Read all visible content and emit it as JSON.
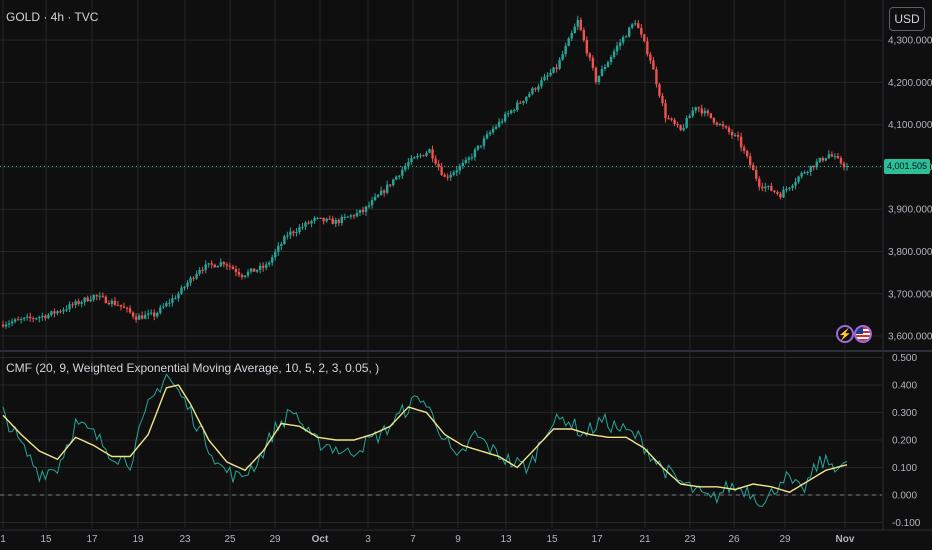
{
  "header": {
    "title": "GOLD · 4h · TVC",
    "currency": "USD"
  },
  "indicator": {
    "title": "CMF (20, 9, Weighted Exponential Moving Average, 10, 5, 2, 3, 0.05, )"
  },
  "last_price_label": "4,001.505",
  "colors": {
    "bull": "#26a69a",
    "bear": "#ef5350",
    "cmf": "#26a69a",
    "signal": "#f0e68c",
    "last_price": "#2bbf9a",
    "grid": "#262626"
  },
  "icons": [
    "lightning-event-icon",
    "us-flag-event-icon"
  ],
  "chart_data": [
    {
      "type": "candlestick",
      "title": "GOLD · 4h · TVC",
      "y_ticks": [
        "4,300.000",
        "4,200.000",
        "4,100.000",
        "4,000.000",
        "3,900.000",
        "3,800.000",
        "3,700.000",
        "3,600.000"
      ],
      "y_tick_values": [
        4300,
        4200,
        4100,
        4000,
        3900,
        3800,
        3700,
        3600
      ],
      "ylim": [
        3567,
        4395
      ],
      "x_ticks": [
        "1",
        "15",
        "17",
        "19",
        "23",
        "25",
        "29",
        "Oct",
        "3",
        "7",
        "9",
        "13",
        "15",
        "17",
        "21",
        "23",
        "26",
        "29",
        "Nov"
      ],
      "last_price": 4001.505,
      "grid": true,
      "anchors": [
        [
          0,
          3630
        ],
        [
          8,
          3640
        ],
        [
          15,
          3650
        ],
        [
          22,
          3670
        ],
        [
          30,
          3695
        ],
        [
          38,
          3675
        ],
        [
          44,
          3645
        ],
        [
          50,
          3650
        ],
        [
          58,
          3700
        ],
        [
          65,
          3760
        ],
        [
          73,
          3775
        ],
        [
          79,
          3745
        ],
        [
          87,
          3765
        ],
        [
          94,
          3840
        ],
        [
          103,
          3875
        ],
        [
          110,
          3870
        ],
        [
          119,
          3895
        ],
        [
          126,
          3945
        ],
        [
          134,
          4010
        ],
        [
          141,
          4040
        ],
        [
          146,
          3975
        ],
        [
          153,
          4010
        ],
        [
          162,
          4090
        ],
        [
          169,
          4140
        ],
        [
          177,
          4195
        ],
        [
          183,
          4235
        ],
        [
          190,
          4345
        ],
        [
          196,
          4205
        ],
        [
          203,
          4285
        ],
        [
          209,
          4345
        ],
        [
          214,
          4255
        ],
        [
          219,
          4120
        ],
        [
          224,
          4085
        ],
        [
          229,
          4145
        ],
        [
          236,
          4105
        ],
        [
          243,
          4065
        ],
        [
          250,
          3960
        ],
        [
          257,
          3935
        ],
        [
          265,
          3990
        ],
        [
          273,
          4030
        ],
        [
          279,
          4000
        ]
      ]
    },
    {
      "type": "line",
      "title": "CMF (20, 9, Weighted Exponential Moving Average, 10, 5, 2, 3, 0.05, )",
      "y_ticks": [
        "0.500",
        "0.400",
        "0.300",
        "0.200",
        "0.100",
        "0.000",
        "-0.100"
      ],
      "y_tick_values": [
        0.5,
        0.4,
        0.3,
        0.2,
        0.1,
        0.0,
        -0.1
      ],
      "ylim": [
        -0.12,
        0.52
      ],
      "reference_line": 0.0,
      "series": [
        {
          "name": "CMF",
          "color": "#26a69a",
          "anchors": [
            [
              0,
              0.3
            ],
            [
              6,
              0.18
            ],
            [
              12,
              0.08
            ],
            [
              18,
              0.1
            ],
            [
              24,
              0.26
            ],
            [
              30,
              0.22
            ],
            [
              36,
              0.15
            ],
            [
              42,
              0.12
            ],
            [
              48,
              0.32
            ],
            [
              54,
              0.44
            ],
            [
              60,
              0.34
            ],
            [
              66,
              0.22
            ],
            [
              72,
              0.1
            ],
            [
              78,
              0.06
            ],
            [
              84,
              0.12
            ],
            [
              90,
              0.24
            ],
            [
              96,
              0.31
            ],
            [
              102,
              0.2
            ],
            [
              108,
              0.18
            ],
            [
              114,
              0.15
            ],
            [
              120,
              0.19
            ],
            [
              126,
              0.23
            ],
            [
              132,
              0.3
            ],
            [
              138,
              0.36
            ],
            [
              144,
              0.25
            ],
            [
              150,
              0.12
            ],
            [
              156,
              0.22
            ],
            [
              162,
              0.16
            ],
            [
              168,
              0.12
            ],
            [
              174,
              0.1
            ],
            [
              180,
              0.25
            ],
            [
              186,
              0.28
            ],
            [
              192,
              0.22
            ],
            [
              198,
              0.27
            ],
            [
              204,
              0.24
            ],
            [
              210,
              0.21
            ],
            [
              216,
              0.12
            ],
            [
              222,
              0.06
            ],
            [
              228,
              0.02
            ],
            [
              234,
              -0.02
            ],
            [
              240,
              0.03
            ],
            [
              246,
              0.02
            ],
            [
              252,
              -0.03
            ],
            [
              258,
              0.07
            ],
            [
              264,
              0.01
            ],
            [
              270,
              0.12
            ],
            [
              276,
              0.11
            ],
            [
              279,
              0.1
            ]
          ]
        },
        {
          "name": "Signal",
          "color": "#f0e68c",
          "anchors": [
            [
              0,
              0.29
            ],
            [
              6,
              0.22
            ],
            [
              12,
              0.16
            ],
            [
              18,
              0.13
            ],
            [
              24,
              0.21
            ],
            [
              30,
              0.18
            ],
            [
              36,
              0.14
            ],
            [
              42,
              0.14
            ],
            [
              48,
              0.22
            ],
            [
              54,
              0.39
            ],
            [
              58,
              0.4
            ],
            [
              62,
              0.33
            ],
            [
              68,
              0.2
            ],
            [
              74,
              0.12
            ],
            [
              80,
              0.09
            ],
            [
              86,
              0.16
            ],
            [
              92,
              0.26
            ],
            [
              98,
              0.25
            ],
            [
              104,
              0.21
            ],
            [
              110,
              0.2
            ],
            [
              116,
              0.2
            ],
            [
              122,
              0.22
            ],
            [
              128,
              0.25
            ],
            [
              134,
              0.32
            ],
            [
              140,
              0.3
            ],
            [
              146,
              0.22
            ],
            [
              152,
              0.18
            ],
            [
              158,
              0.16
            ],
            [
              164,
              0.14
            ],
            [
              170,
              0.1
            ],
            [
              176,
              0.17
            ],
            [
              182,
              0.24
            ],
            [
              188,
              0.24
            ],
            [
              194,
              0.22
            ],
            [
              200,
              0.21
            ],
            [
              206,
              0.21
            ],
            [
              212,
              0.17
            ],
            [
              218,
              0.1
            ],
            [
              224,
              0.04
            ],
            [
              230,
              0.03
            ],
            [
              236,
              0.03
            ],
            [
              242,
              0.02
            ],
            [
              248,
              0.04
            ],
            [
              254,
              0.03
            ],
            [
              260,
              0.01
            ],
            [
              266,
              0.05
            ],
            [
              272,
              0.09
            ],
            [
              279,
              0.11
            ]
          ]
        }
      ]
    }
  ]
}
